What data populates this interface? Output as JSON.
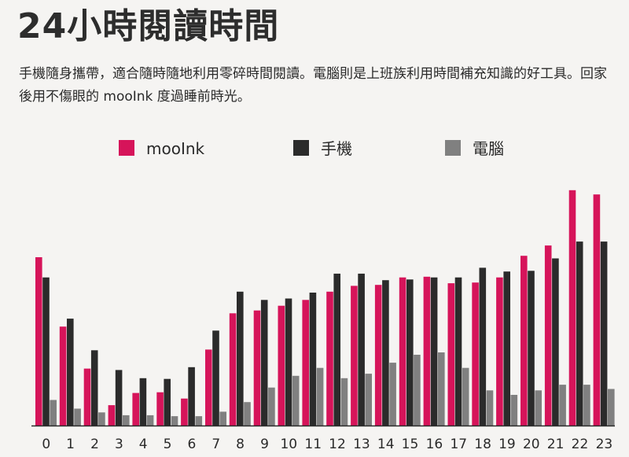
{
  "header": {
    "title": "24小時閱讀時間",
    "subtitle": "手機隨身攜帶，適合隨時隨地利用零碎時間閱讀。電腦則是上班族利用時間補充知識的好工具。回家後用不傷眼的 mooInk 度過睡前時光。"
  },
  "chart_data": {
    "type": "bar",
    "title": "",
    "xlabel": "",
    "ylabel": "",
    "ylim": [
      0,
      100
    ],
    "grid": false,
    "legend_position": "top",
    "categories": [
      "0",
      "1",
      "2",
      "3",
      "4",
      "5",
      "6",
      "7",
      "8",
      "9",
      "10",
      "11",
      "12",
      "13",
      "14",
      "15",
      "16",
      "17",
      "18",
      "19",
      "20",
      "21",
      "22",
      "23"
    ],
    "series": [
      {
        "name": "mooInk",
        "color": "#d6145a",
        "values": [
          71.8,
          42.2,
          24.3,
          8.7,
          13.9,
          14.2,
          11.5,
          32.4,
          47.9,
          49.1,
          51.1,
          53.6,
          57.1,
          59.6,
          60.0,
          63.2,
          63.5,
          60.7,
          61.0,
          63.2,
          72.4,
          76.8,
          100.4,
          98.6
        ]
      },
      {
        "name": "手機",
        "color": "#2b2b2b",
        "values": [
          63.2,
          45.6,
          32.1,
          23.7,
          20.2,
          19.9,
          24.9,
          40.5,
          57.1,
          53.6,
          54.2,
          56.7,
          64.8,
          64.8,
          62.0,
          62.3,
          63.2,
          63.2,
          67.3,
          65.7,
          66.0,
          71.3,
          78.5,
          78.5
        ]
      },
      {
        "name": "電腦",
        "color": "#808080",
        "values": [
          10.9,
          7.2,
          5.6,
          4.4,
          4.4,
          4.0,
          4.0,
          5.9,
          10.0,
          16.2,
          21.2,
          24.6,
          20.2,
          22.1,
          26.8,
          30.2,
          31.2,
          24.6,
          15.0,
          13.1,
          15.0,
          17.4,
          17.4,
          15.6
        ]
      }
    ]
  }
}
